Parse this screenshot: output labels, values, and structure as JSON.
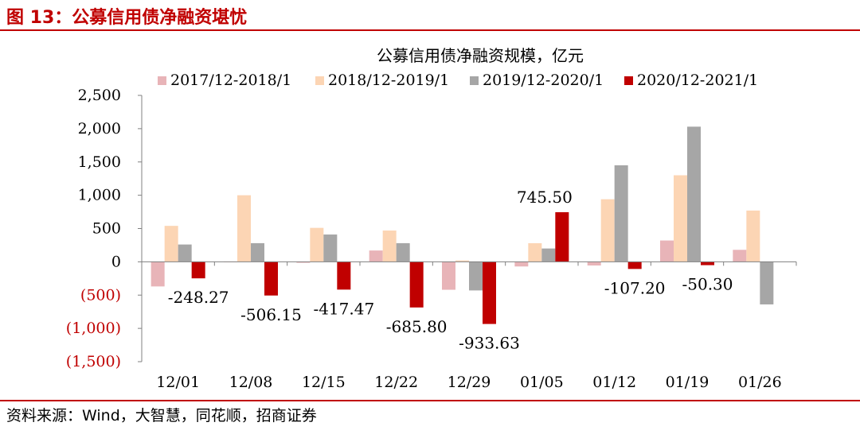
{
  "figure": {
    "title": "图 13：公募信用债净融资堪忧",
    "source": "资料来源：Wind，大智慧，同花顺，招商证券"
  },
  "chart_data": {
    "type": "bar",
    "title": "公募信用债净融资规模，亿元",
    "categories": [
      "12/01",
      "12/08",
      "12/15",
      "12/22",
      "12/29",
      "01/05",
      "01/12",
      "01/19",
      "01/26"
    ],
    "ylim": [
      -1500,
      2500
    ],
    "yticks": [
      {
        "value": 2500,
        "label": "2,500"
      },
      {
        "value": 2000,
        "label": "2,000"
      },
      {
        "value": 1500,
        "label": "1,500"
      },
      {
        "value": 1000,
        "label": "1,000"
      },
      {
        "value": 500,
        "label": "500"
      },
      {
        "value": 0,
        "label": "0"
      },
      {
        "value": -500,
        "label": "(500)"
      },
      {
        "value": -1000,
        "label": "(1,000)"
      },
      {
        "value": -1500,
        "label": "(1,500)"
      }
    ],
    "legend_position": "top",
    "series": [
      {
        "name": "2017/12-2018/1",
        "color": "#e8b4b8",
        "values": [
          -370,
          0,
          -15,
          170,
          -420,
          -70,
          -55,
          320,
          180
        ]
      },
      {
        "name": "2018/12-2019/1",
        "color": "#fcd5b4",
        "values": [
          540,
          1000,
          510,
          470,
          20,
          280,
          940,
          1300,
          770
        ]
      },
      {
        "name": "2019/12-2020/1",
        "color": "#a6a6a6",
        "values": [
          260,
          280,
          410,
          280,
          -430,
          200,
          1450,
          2030,
          -640
        ]
      },
      {
        "name": "2020/12-2021/1",
        "color": "#c00000",
        "values": [
          -248.27,
          -506.15,
          -417.47,
          -685.8,
          -933.63,
          745.5,
          -107.2,
          -50.3,
          null
        ]
      }
    ],
    "data_labels": [
      "-248.27",
      "-506.15",
      "-417.47",
      "-685.80",
      "-933.63",
      "745.50",
      "-107.20",
      "-50.30",
      ""
    ]
  }
}
